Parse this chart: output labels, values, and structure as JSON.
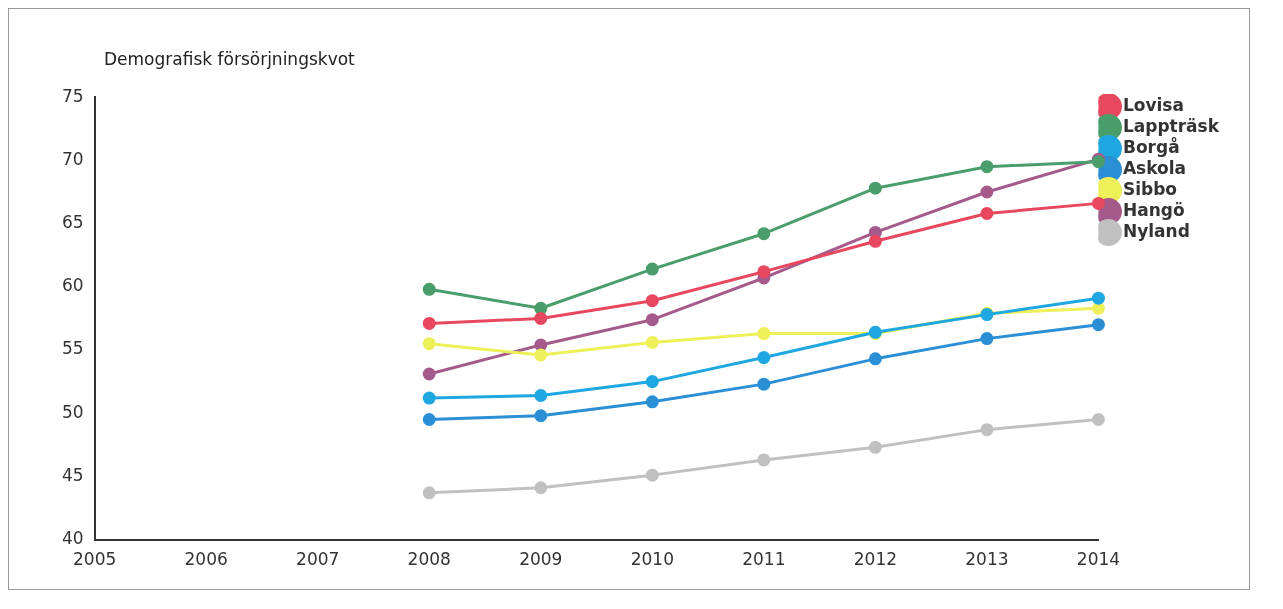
{
  "chart_data": {
    "type": "line",
    "ylabel": "Demografisk försörjningskvot",
    "categories": [
      "2005",
      "2006",
      "2007",
      "2008",
      "2009",
      "2010",
      "2011",
      "2012",
      "2013",
      "2014"
    ],
    "ylim": [
      40,
      75
    ],
    "yticks": [
      40,
      45,
      50,
      55,
      60,
      65,
      70,
      75
    ],
    "grid": false,
    "legend": "top right",
    "marker": "circle",
    "line_style": "solid",
    "series": [
      {
        "name": "Lovisa",
        "color": "#e8485f",
        "values": [
          null,
          null,
          null,
          57.1,
          57.5,
          58.9,
          61.2,
          63.6,
          65.8,
          66.6
        ]
      },
      {
        "name": "Lappträsk",
        "color": "#4a9e6c",
        "values": [
          null,
          null,
          null,
          59.8,
          58.3,
          61.4,
          64.2,
          67.8,
          69.5,
          69.9
        ]
      },
      {
        "name": "Borgå",
        "color": "#1ea7e1",
        "values": [
          null,
          null,
          null,
          51.2,
          51.4,
          52.5,
          54.4,
          56.4,
          57.8,
          59.1
        ]
      },
      {
        "name": "Askola",
        "color": "#2a8fd4",
        "values": [
          null,
          null,
          null,
          49.5,
          49.8,
          50.9,
          52.3,
          54.3,
          55.9,
          57.0
        ]
      },
      {
        "name": "Sibbo",
        "color": "#eef05a",
        "values": [
          null,
          null,
          null,
          55.5,
          54.6,
          55.6,
          56.3,
          56.3,
          57.9,
          58.3
        ]
      },
      {
        "name": "Hangö",
        "color": "#a45a8a",
        "values": [
          null,
          null,
          null,
          53.1,
          55.4,
          57.4,
          60.7,
          64.3,
          67.5,
          70.1
        ]
      },
      {
        "name": "Nyland",
        "color": "#c0c0c0",
        "values": [
          null,
          null,
          null,
          43.7,
          44.1,
          45.1,
          46.3,
          47.3,
          48.7,
          49.5
        ]
      }
    ]
  }
}
